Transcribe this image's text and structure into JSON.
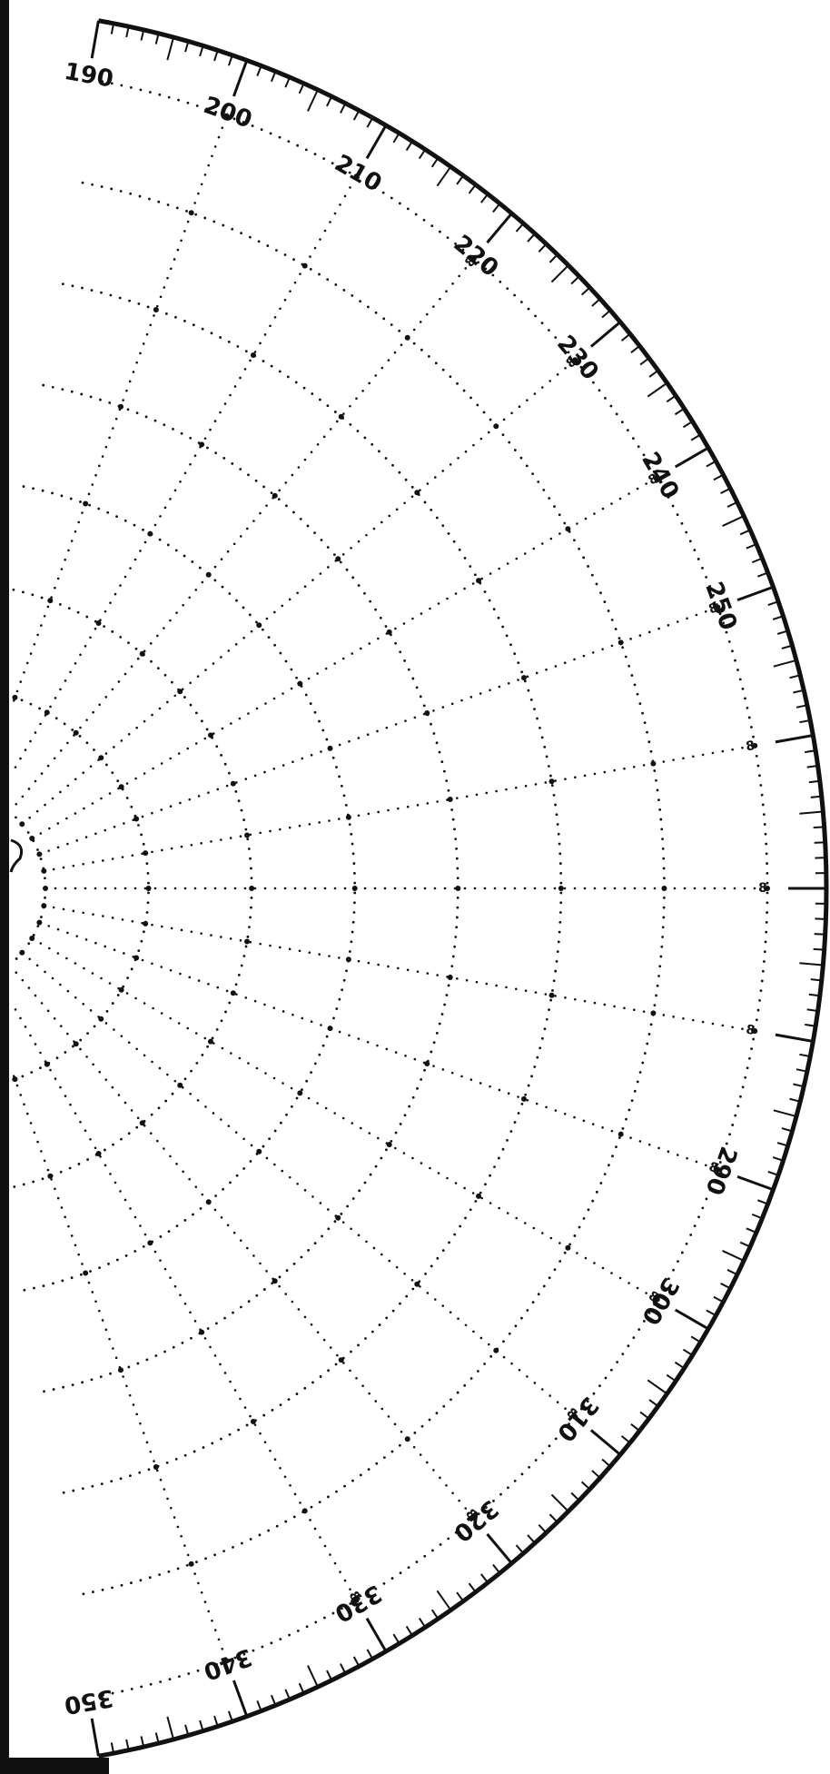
{
  "diagram": {
    "type": "polar-grid-half",
    "colors": {
      "ink": "#111111",
      "paper": "#ffffff"
    },
    "arc_start_deg": 190,
    "arc_end_deg": 350,
    "degree_labels": [
      {
        "deg": 190,
        "text": "190"
      },
      {
        "deg": 200,
        "text": "200"
      },
      {
        "deg": 210,
        "text": "210"
      },
      {
        "deg": 220,
        "text": "220"
      },
      {
        "deg": 230,
        "text": "230"
      },
      {
        "deg": 240,
        "text": "240"
      },
      {
        "deg": 250,
        "text": "250"
      },
      {
        "deg": 290,
        "text": "290"
      },
      {
        "deg": 300,
        "text": "300"
      },
      {
        "deg": 310,
        "text": "310"
      },
      {
        "deg": 320,
        "text": "320"
      },
      {
        "deg": 330,
        "text": "330"
      },
      {
        "deg": 340,
        "text": "340"
      },
      {
        "deg": 350,
        "text": "350"
      }
    ],
    "ring_label_text": "8",
    "ring_count": 8,
    "radial_step_deg": 10
  }
}
